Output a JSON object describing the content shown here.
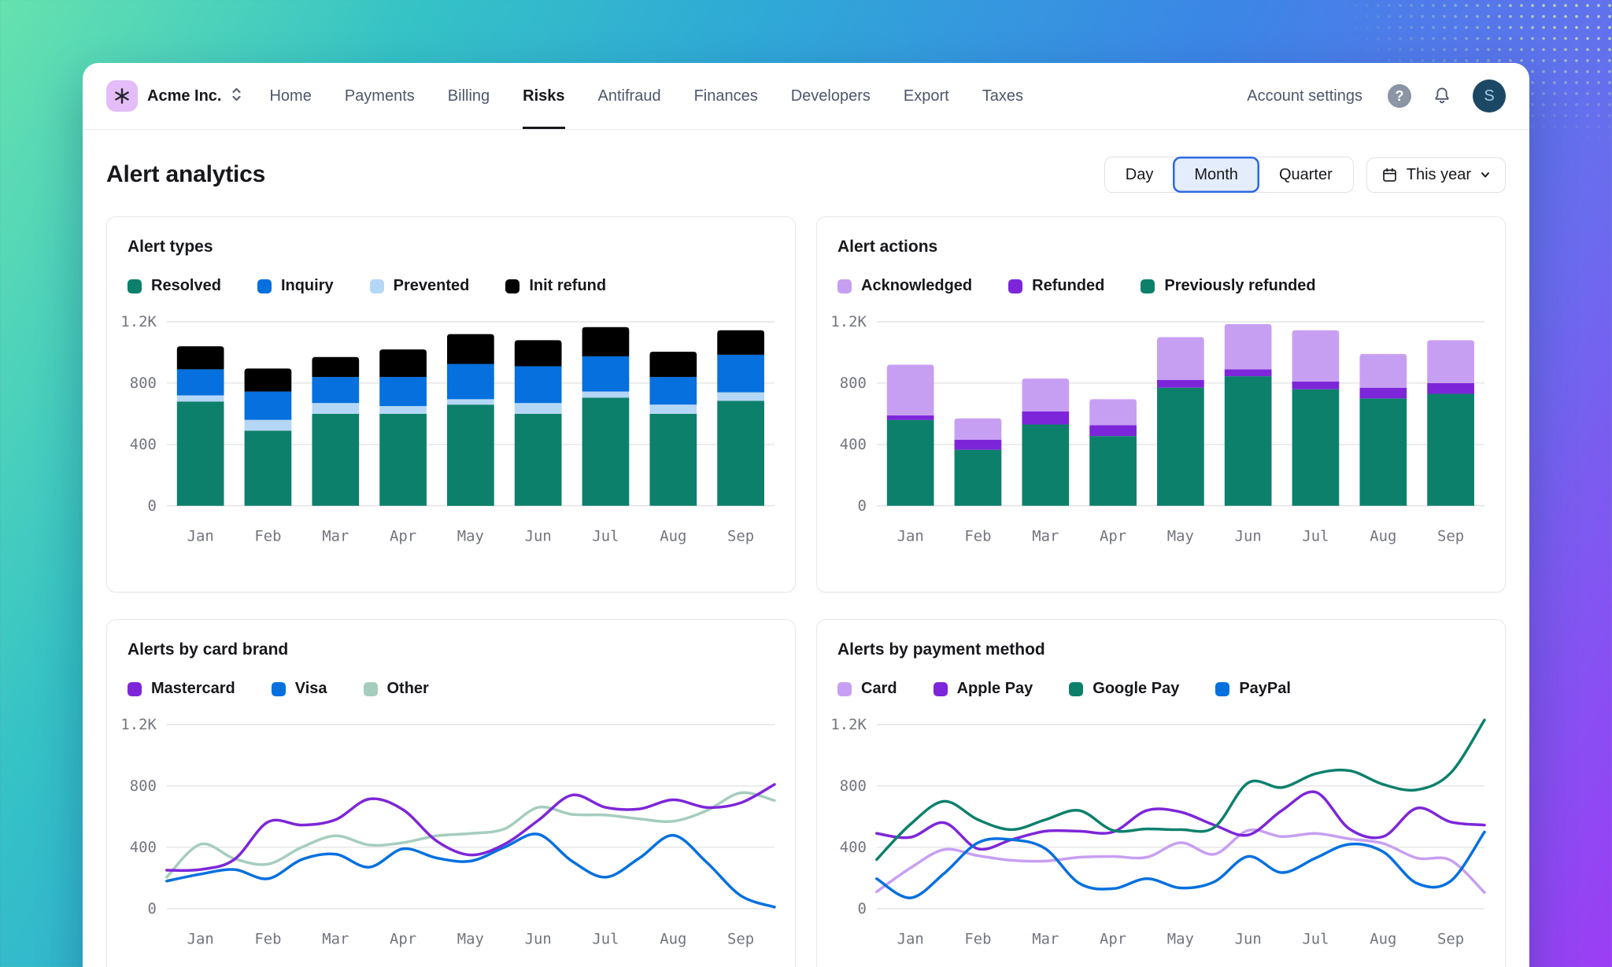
{
  "nav": {
    "brand": "Acme Inc.",
    "items": [
      {
        "label": "Home",
        "active": false
      },
      {
        "label": "Payments",
        "active": false
      },
      {
        "label": "Billing",
        "active": false
      },
      {
        "label": "Risks",
        "active": true
      },
      {
        "label": "Antifraud",
        "active": false
      },
      {
        "label": "Finances",
        "active": false
      },
      {
        "label": "Developers",
        "active": false
      },
      {
        "label": "Export",
        "active": false
      },
      {
        "label": "Taxes",
        "active": false
      }
    ],
    "account_settings": "Account settings",
    "help_glyph": "?",
    "avatar_initial": "S",
    "icons": {
      "org_logo": "asterisk-icon",
      "org_switcher": "up-down-chevrons-icon",
      "help": "question-circle-icon",
      "notifications": "bell-icon"
    }
  },
  "header": {
    "title": "Alert analytics",
    "range_options": [
      {
        "label": "Day",
        "selected": false
      },
      {
        "label": "Month",
        "selected": true
      },
      {
        "label": "Quarter",
        "selected": false
      }
    ],
    "period_label": "This year",
    "period_icons": {
      "left": "calendar-icon",
      "right": "chevron-down-icon"
    }
  },
  "colors": {
    "green": "#0d806c",
    "blue": "#0570de",
    "light_blue": "#b5d7f6",
    "black": "#000000",
    "purple": "#7d26d9",
    "light_purple": "#c79ff2",
    "sage": "#a5cdbd",
    "selected_segment_border": "#2f6ae0",
    "selected_segment_bg": "#e4edfb",
    "logo_bg": "#e4bcf8",
    "avatar_bg": "#1c4866",
    "avatar_text": "#9fd0ea"
  },
  "chart_data": [
    {
      "type": "bar",
      "title": "Alert types",
      "categories": [
        "Jan",
        "Feb",
        "Mar",
        "Apr",
        "May",
        "Jun",
        "Jul",
        "Aug",
        "Sep"
      ],
      "ylim": [
        0,
        1200
      ],
      "yticks": [
        {
          "value": 0,
          "label": "0"
        },
        {
          "value": 400,
          "label": "400"
        },
        {
          "value": 800,
          "label": "800"
        },
        {
          "value": 1200,
          "label": "1.2K"
        }
      ],
      "grid": true,
      "legend_position": "top",
      "legend": [
        {
          "label": "Resolved",
          "color": "#0d806c"
        },
        {
          "label": "Inquiry",
          "color": "#0570de"
        },
        {
          "label": "Prevented",
          "color": "#b5d7f6"
        },
        {
          "label": "Init refund",
          "color": "#000000"
        }
      ],
      "series": [
        {
          "name": "Resolved",
          "color": "#0d806c",
          "values": [
            680,
            490,
            600,
            600,
            660,
            600,
            705,
            600,
            685
          ]
        },
        {
          "name": "Prevented",
          "color": "#b5d7f6",
          "values": [
            40,
            70,
            70,
            50,
            35,
            70,
            40,
            60,
            55
          ]
        },
        {
          "name": "Inquiry",
          "color": "#0570de",
          "values": [
            170,
            185,
            170,
            190,
            230,
            240,
            230,
            180,
            245
          ]
        },
        {
          "name": "Init refund",
          "color": "#000000",
          "values": [
            150,
            150,
            130,
            180,
            195,
            170,
            190,
            165,
            160
          ]
        }
      ]
    },
    {
      "type": "bar",
      "title": "Alert actions",
      "categories": [
        "Jan",
        "Feb",
        "Mar",
        "Apr",
        "May",
        "Jun",
        "Jul",
        "Aug",
        "Sep"
      ],
      "ylim": [
        0,
        1200
      ],
      "yticks": [
        {
          "value": 0,
          "label": "0"
        },
        {
          "value": 400,
          "label": "400"
        },
        {
          "value": 800,
          "label": "800"
        },
        {
          "value": 1200,
          "label": "1.2K"
        }
      ],
      "grid": true,
      "legend_position": "top",
      "legend": [
        {
          "label": "Acknowledged",
          "color": "#c79ff2"
        },
        {
          "label": "Refunded",
          "color": "#7d26d9"
        },
        {
          "label": "Previously refunded",
          "color": "#0d806c"
        }
      ],
      "series": [
        {
          "name": "Previously refunded",
          "color": "#0d806c",
          "values": [
            560,
            365,
            530,
            455,
            770,
            845,
            760,
            700,
            730
          ]
        },
        {
          "name": "Refunded",
          "color": "#7d26d9",
          "values": [
            30,
            65,
            85,
            70,
            50,
            45,
            50,
            70,
            70
          ]
        },
        {
          "name": "Acknowledged",
          "color": "#c79ff2",
          "values": [
            330,
            140,
            215,
            170,
            280,
            295,
            335,
            220,
            280
          ]
        }
      ]
    },
    {
      "type": "line",
      "title": "Alerts by card brand",
      "categories": [
        "Jan",
        "Feb",
        "Mar",
        "Apr",
        "May",
        "Jun",
        "Jul",
        "Aug",
        "Sep"
      ],
      "x": [
        -0.5,
        0,
        0.5,
        1,
        1.5,
        2,
        2.5,
        3,
        3.5,
        4,
        4.5,
        5,
        5.5,
        6,
        6.5,
        7,
        7.5,
        8,
        8.5
      ],
      "ylim": [
        0,
        1200
      ],
      "yticks": [
        {
          "value": 0,
          "label": "0"
        },
        {
          "value": 400,
          "label": "400"
        },
        {
          "value": 800,
          "label": "800"
        },
        {
          "value": 1200,
          "label": "1.2K"
        }
      ],
      "grid": true,
      "legend_position": "top",
      "legend": [
        {
          "label": "Mastercard",
          "color": "#7d26d9"
        },
        {
          "label": "Visa",
          "color": "#0570de"
        },
        {
          "label": "Other",
          "color": "#a5cdbd"
        }
      ],
      "series": [
        {
          "name": "Other",
          "color": "#a5cdbd",
          "values": [
            205,
            420,
            326,
            290,
            400,
            475,
            415,
            430,
            475,
            490,
            520,
            660,
            615,
            610,
            585,
            570,
            640,
            755,
            705
          ]
        },
        {
          "name": "Visa",
          "color": "#0570de",
          "values": [
            180,
            225,
            255,
            195,
            320,
            355,
            270,
            390,
            330,
            310,
            400,
            485,
            310,
            205,
            330,
            478,
            300,
            85,
            10
          ]
        },
        {
          "name": "Mastercard",
          "color": "#7d26d9",
          "values": [
            250,
            255,
            320,
            565,
            545,
            580,
            715,
            645,
            440,
            350,
            420,
            575,
            740,
            660,
            650,
            710,
            660,
            690,
            810
          ]
        }
      ]
    },
    {
      "type": "line",
      "title": "Alerts by payment method",
      "categories": [
        "Jan",
        "Feb",
        "Mar",
        "Apr",
        "May",
        "Jun",
        "Jul",
        "Aug",
        "Sep"
      ],
      "x": [
        -0.5,
        0,
        0.5,
        1,
        1.5,
        2,
        2.5,
        3,
        3.5,
        4,
        4.5,
        5,
        5.5,
        6,
        6.5,
        7,
        7.5,
        8,
        8.5
      ],
      "ylim": [
        0,
        1200
      ],
      "yticks": [
        {
          "value": 0,
          "label": "0"
        },
        {
          "value": 400,
          "label": "400"
        },
        {
          "value": 800,
          "label": "800"
        },
        {
          "value": 1200,
          "label": "1.2K"
        }
      ],
      "grid": true,
      "legend_position": "top",
      "legend": [
        {
          "label": "Card",
          "color": "#c79ff2"
        },
        {
          "label": "Apple Pay",
          "color": "#7d26d9"
        },
        {
          "label": "Google Pay",
          "color": "#0d806c"
        },
        {
          "label": "PayPal",
          "color": "#0570de"
        }
      ],
      "series": [
        {
          "name": "Card",
          "color": "#c79ff2",
          "values": [
            110,
            265,
            385,
            345,
            315,
            310,
            335,
            340,
            335,
            430,
            355,
            510,
            470,
            490,
            455,
            425,
            330,
            315,
            105
          ]
        },
        {
          "name": "Apple Pay",
          "color": "#7d26d9",
          "values": [
            490,
            465,
            560,
            390,
            450,
            505,
            505,
            500,
            640,
            630,
            545,
            480,
            640,
            760,
            520,
            470,
            655,
            565,
            545
          ]
        },
        {
          "name": "Google Pay",
          "color": "#0d806c",
          "values": [
            320,
            550,
            700,
            580,
            515,
            580,
            640,
            510,
            520,
            515,
            530,
            820,
            790,
            880,
            900,
            810,
            775,
            885,
            1230
          ]
        },
        {
          "name": "PayPal",
          "color": "#0570de",
          "values": [
            195,
            70,
            230,
            430,
            450,
            390,
            165,
            130,
            195,
            135,
            175,
            340,
            235,
            330,
            420,
            370,
            165,
            180,
            500
          ]
        }
      ]
    }
  ]
}
